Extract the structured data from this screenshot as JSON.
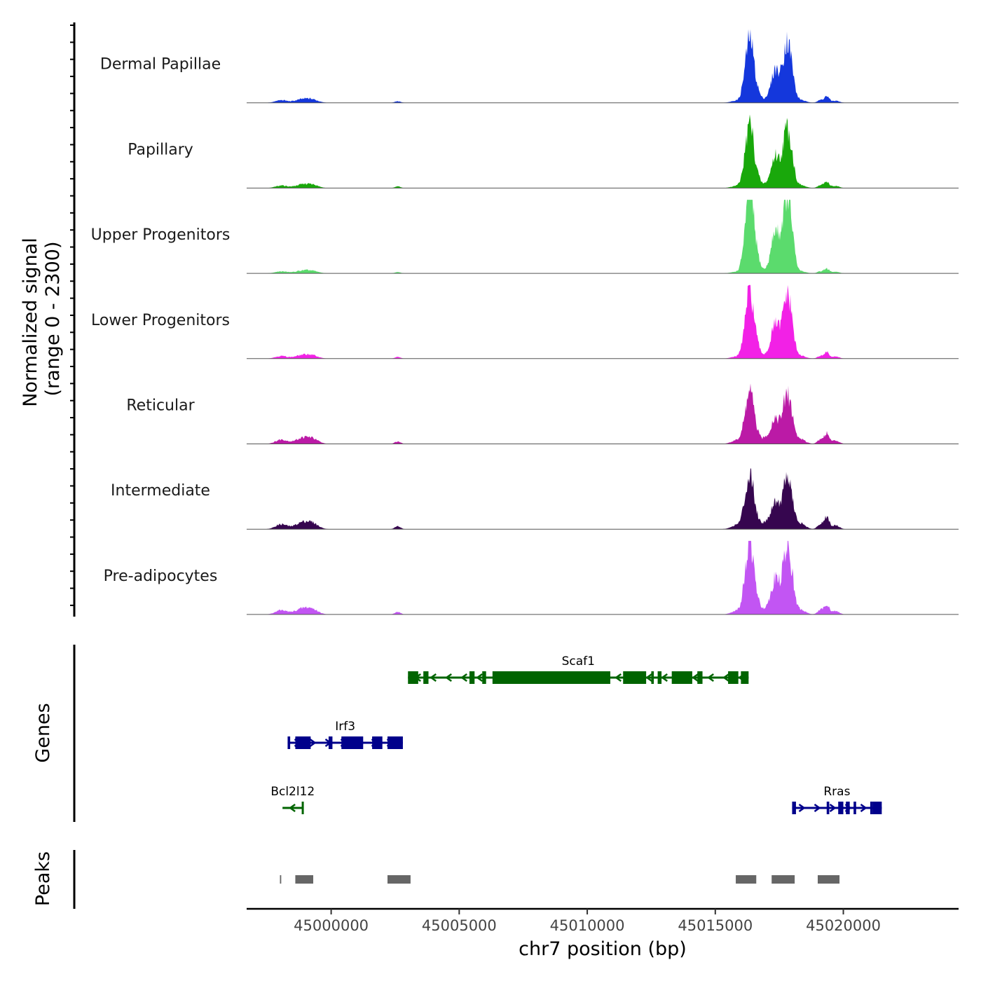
{
  "chart_data": {
    "type": "area",
    "title": "",
    "y_axis_label_line1": "Normalized signal",
    "y_axis_label_line2": "(range 0 - 2300)",
    "y_range": [
      0,
      2300
    ],
    "xlabel": "chr7 position (bp)",
    "x_range": [
      44996700,
      45024500
    ],
    "x_ticks": [
      45000000,
      45005000,
      45010000,
      45015000,
      45020000
    ],
    "x_tick_labels": [
      "45000000",
      "45005000",
      "45010000",
      "45015000",
      "45020000"
    ],
    "tracks": [
      {
        "name": "Dermal Papillae",
        "color": "#1437DC",
        "scale": 1.0,
        "small_peak_scale": 0.8
      },
      {
        "name": "Papillary",
        "color": "#19A80B",
        "scale": 0.98,
        "small_peak_scale": 0.8
      },
      {
        "name": "Upper Progenitors",
        "color": "#5BDB6D",
        "scale": 1.3,
        "small_peak_scale": 0.6
      },
      {
        "name": "Lower Progenitors",
        "color": "#F221E6",
        "scale": 1.05,
        "small_peak_scale": 0.8
      },
      {
        "name": "Reticular",
        "color": "#BB1AA6",
        "scale": 0.8,
        "small_peak_scale": 1.3
      },
      {
        "name": "Intermediate",
        "color": "#36064F",
        "scale": 0.85,
        "small_peak_scale": 1.5
      },
      {
        "name": "Pre-adipocytes",
        "color": "#C255F3",
        "scale": 1.1,
        "small_peak_scale": 1.3
      }
    ],
    "signal_peaks": [
      {
        "center": 44998050,
        "width": 220,
        "height": 0.05
      },
      {
        "center": 44998900,
        "width": 300,
        "height": 0.07
      },
      {
        "center": 44999300,
        "width": 220,
        "height": 0.04
      },
      {
        "center": 45002600,
        "width": 110,
        "height": 0.03
      },
      {
        "center": 45015900,
        "width": 230,
        "height": 0.05
      },
      {
        "center": 45016150,
        "width": 110,
        "height": 0.3
      },
      {
        "center": 45016350,
        "width": 120,
        "height": 0.84
      },
      {
        "center": 45016550,
        "width": 150,
        "height": 0.3
      },
      {
        "center": 45017000,
        "width": 150,
        "height": 0.07
      },
      {
        "center": 45017350,
        "width": 160,
        "height": 0.5
      },
      {
        "center": 45017750,
        "width": 140,
        "height": 0.74
      },
      {
        "center": 45017950,
        "width": 130,
        "height": 0.46
      },
      {
        "center": 45018300,
        "width": 200,
        "height": 0.06
      },
      {
        "center": 45019100,
        "width": 110,
        "height": 0.05
      },
      {
        "center": 45019350,
        "width": 100,
        "height": 0.12
      },
      {
        "center": 45019700,
        "width": 140,
        "height": 0.04
      }
    ],
    "genes_label": "Genes",
    "genes": [
      {
        "name": "Scaf1",
        "strand": "-",
        "color": "#006400",
        "row": 0,
        "start": 45003000,
        "end": 45016300,
        "exons": [
          [
            45003000,
            45003400
          ],
          [
            45003600,
            45003800
          ],
          [
            45005400,
            45005600
          ],
          [
            45005900,
            45006050
          ],
          [
            45006300,
            45010900
          ],
          [
            45011400,
            45012300
          ],
          [
            45012500,
            45012600
          ],
          [
            45012750,
            45012900
          ],
          [
            45013300,
            45014100
          ],
          [
            45014300,
            45014500
          ],
          [
            45015500,
            45015900
          ],
          [
            45016000,
            45016300
          ]
        ]
      },
      {
        "name": "Irf3",
        "strand": "+",
        "color": "#00008B",
        "row": 1,
        "start": 44998300,
        "end": 45002800,
        "exons": [
          [
            44998300,
            44998400
          ],
          [
            44998600,
            44999200
          ],
          [
            44999900,
            45000050
          ],
          [
            45000400,
            45001250
          ],
          [
            45001600,
            45002000
          ],
          [
            45002200,
            45002800
          ]
        ]
      },
      {
        "name": "Bcl2l12",
        "strand": "-",
        "color": "#006400",
        "row": 2,
        "start": 44998100,
        "end": 44998900,
        "exons": [
          [
            44998850,
            44998900
          ]
        ]
      },
      {
        "name": "Rras",
        "strand": "+",
        "color": "#00008B",
        "row": 2,
        "start": 45018000,
        "end": 45021500,
        "exons": [
          [
            45018000,
            45018150
          ],
          [
            45019350,
            45019450
          ],
          [
            45019800,
            45020000
          ],
          [
            45020100,
            45020250
          ],
          [
            45020400,
            45020500
          ],
          [
            45021050,
            45021150
          ],
          [
            45021150,
            45021500
          ]
        ]
      }
    ],
    "peaks_label": "Peaks",
    "peaks": [
      [
        44998000,
        44998050
      ],
      [
        44998600,
        44999300
      ],
      [
        45002200,
        45003100
      ],
      [
        45015800,
        45016600
      ],
      [
        45017200,
        45018100
      ],
      [
        45019000,
        45019850
      ]
    ]
  }
}
